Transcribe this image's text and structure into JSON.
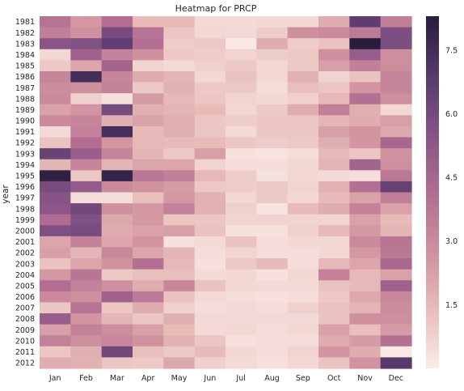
{
  "chart_data": {
    "type": "heatmap",
    "title": "Heatmap for PRCP",
    "xlabel": "",
    "ylabel": "year",
    "x": [
      "Jan",
      "Feb",
      "Mar",
      "Apr",
      "May",
      "Jun",
      "Jul",
      "Aug",
      "Sep",
      "Oct",
      "Nov",
      "Dec"
    ],
    "y": [
      "1981",
      "1982",
      "1983",
      "1984",
      "1985",
      "1986",
      "1987",
      "1988",
      "1989",
      "1990",
      "1991",
      "1992",
      "1993",
      "1994",
      "1995",
      "1996",
      "1997",
      "1998",
      "1999",
      "2000",
      "2001",
      "2002",
      "2003",
      "2004",
      "2005",
      "2006",
      "2007",
      "2008",
      "2009",
      "2010",
      "2011",
      "2012"
    ],
    "values": [
      [
        3.9,
        2.5,
        4.1,
        1.4,
        1.4,
        0.5,
        0.5,
        0.6,
        0.6,
        1.9,
        6.7,
        3.4
      ],
      [
        3.4,
        2.7,
        5.9,
        3.9,
        1.1,
        0.6,
        0.5,
        0.9,
        2.8,
        3.0,
        3.6,
        5.8
      ],
      [
        5.4,
        5.6,
        6.6,
        4.0,
        0.9,
        1.0,
        0.1,
        1.9,
        0.9,
        1.2,
        8.3,
        5.8
      ],
      [
        0.6,
        4.7,
        3.3,
        2.8,
        1.0,
        0.9,
        0.7,
        0.9,
        1.0,
        2.8,
        5.0,
        2.8
      ],
      [
        1.0,
        2.1,
        4.6,
        0.7,
        0.5,
        0.8,
        1.0,
        0.6,
        1.0,
        2.3,
        3.4,
        2.9
      ],
      [
        3.2,
        7.5,
        3.2,
        1.9,
        1.6,
        0.6,
        1.2,
        0.6,
        1.7,
        0.7,
        1.2,
        3.2
      ],
      [
        2.9,
        2.8,
        3.3,
        1.0,
        1.7,
        1.0,
        1.0,
        0.4,
        1.3,
        1.1,
        2.6,
        3.2
      ],
      [
        3.0,
        0.8,
        0.3,
        2.4,
        1.5,
        1.1,
        0.7,
        0.6,
        0.8,
        1.5,
        4.0,
        2.8
      ],
      [
        2.2,
        2.6,
        6.0,
        1.8,
        1.6,
        1.4,
        0.6,
        1.0,
        1.9,
        3.4,
        1.8,
        0.6
      ],
      [
        3.0,
        3.2,
        1.8,
        2.2,
        1.8,
        1.1,
        0.9,
        1.1,
        1.1,
        1.6,
        1.9,
        2.3
      ],
      [
        0.5,
        3.3,
        7.4,
        1.4,
        1.8,
        1.1,
        0.5,
        1.1,
        1.1,
        2.3,
        2.6,
        2.0
      ],
      [
        1.2,
        4.1,
        2.6,
        1.5,
        1.4,
        1.4,
        1.1,
        0.9,
        1.0,
        1.8,
        2.6,
        4.4
      ],
      [
        6.4,
        4.9,
        3.2,
        1.6,
        1.0,
        2.3,
        0.3,
        0.2,
        0.4,
        1.5,
        1.1,
        2.7
      ],
      [
        1.6,
        3.2,
        1.6,
        2.1,
        2.1,
        0.7,
        0.4,
        0.4,
        0.6,
        1.6,
        4.6,
        2.8
      ],
      [
        8.1,
        1.1,
        7.9,
        3.7,
        3.4,
        1.5,
        0.9,
        0.3,
        0.6,
        0.5,
        0.4,
        3.7
      ],
      [
        5.9,
        5.1,
        3.0,
        2.7,
        2.4,
        1.0,
        0.9,
        1.0,
        0.7,
        1.7,
        4.0,
        6.5
      ],
      [
        5.5,
        0.4,
        0.4,
        1.3,
        2.5,
        1.7,
        0.6,
        1.0,
        0.6,
        1.4,
        2.2,
        3.4
      ],
      [
        5.3,
        6.1,
        2.8,
        2.5,
        3.3,
        1.7,
        0.8,
        0.2,
        1.4,
        1.9,
        3.3,
        2.2
      ],
      [
        4.2,
        5.7,
        2.0,
        2.5,
        1.1,
        1.1,
        0.7,
        0.7,
        0.7,
        0.7,
        2.2,
        1.4
      ],
      [
        5.7,
        5.9,
        1.9,
        2.2,
        2.3,
        1.2,
        0.3,
        0.3,
        0.8,
        1.5,
        2.5,
        1.6
      ],
      [
        2.1,
        3.3,
        2.1,
        2.6,
        0.3,
        0.5,
        1.2,
        0.4,
        0.6,
        0.6,
        3.0,
        3.8
      ],
      [
        2.3,
        1.6,
        3.1,
        2.1,
        1.6,
        0.4,
        0.7,
        0.4,
        0.4,
        0.6,
        2.5,
        3.7
      ],
      [
        1.2,
        2.1,
        2.7,
        4.0,
        1.5,
        0.3,
        1.0,
        1.4,
        0.4,
        1.5,
        2.1,
        4.4
      ],
      [
        2.5,
        3.8,
        1.0,
        1.3,
        1.3,
        0.5,
        0.6,
        0.3,
        0.6,
        3.3,
        1.5,
        2.2
      ],
      [
        4.1,
        3.3,
        2.8,
        1.9,
        3.2,
        1.2,
        0.6,
        0.5,
        0.5,
        1.2,
        1.5,
        4.7
      ],
      [
        3.0,
        2.8,
        4.7,
        3.6,
        1.2,
        0.5,
        0.4,
        0.3,
        0.4,
        1.0,
        2.0,
        3.1
      ],
      [
        1.1,
        3.9,
        1.1,
        1.9,
        0.8,
        0.4,
        0.5,
        0.4,
        0.8,
        1.2,
        1.6,
        2.9
      ],
      [
        4.9,
        2.6,
        1.6,
        1.1,
        1.8,
        0.5,
        0.5,
        0.5,
        0.5,
        1.2,
        2.8,
        2.8
      ],
      [
        2.3,
        3.3,
        2.9,
        2.3,
        1.4,
        0.5,
        0.6,
        0.4,
        0.6,
        2.2,
        1.3,
        2.4
      ],
      [
        3.3,
        2.8,
        3.1,
        2.7,
        1.7,
        1.1,
        0.3,
        0.4,
        0.4,
        1.9,
        2.4,
        4.0
      ],
      [
        1.1,
        1.8,
        6.1,
        1.3,
        1.0,
        1.4,
        0.6,
        0.4,
        0.7,
        2.6,
        1.9,
        0.1
      ],
      [
        1.9,
        1.7,
        1.1,
        1.0,
        2.0,
        0.8,
        0.5,
        0.3,
        0.6,
        1.2,
        2.7,
        6.9
      ]
    ],
    "colorbar": {
      "range": [
        0,
        8.3
      ],
      "ticks": [
        1.5,
        3.0,
        4.5,
        6.0,
        7.5
      ],
      "tick_labels": [
        "1.5",
        "3.0",
        "4.5",
        "6.0",
        "7.5"
      ],
      "colors": [
        "#faebe7",
        "#e8bcb9",
        "#cf909e",
        "#b16c91",
        "#855386",
        "#57396c",
        "#2a1c3b"
      ]
    },
    "grid": false,
    "colorbar_placement": "right"
  }
}
